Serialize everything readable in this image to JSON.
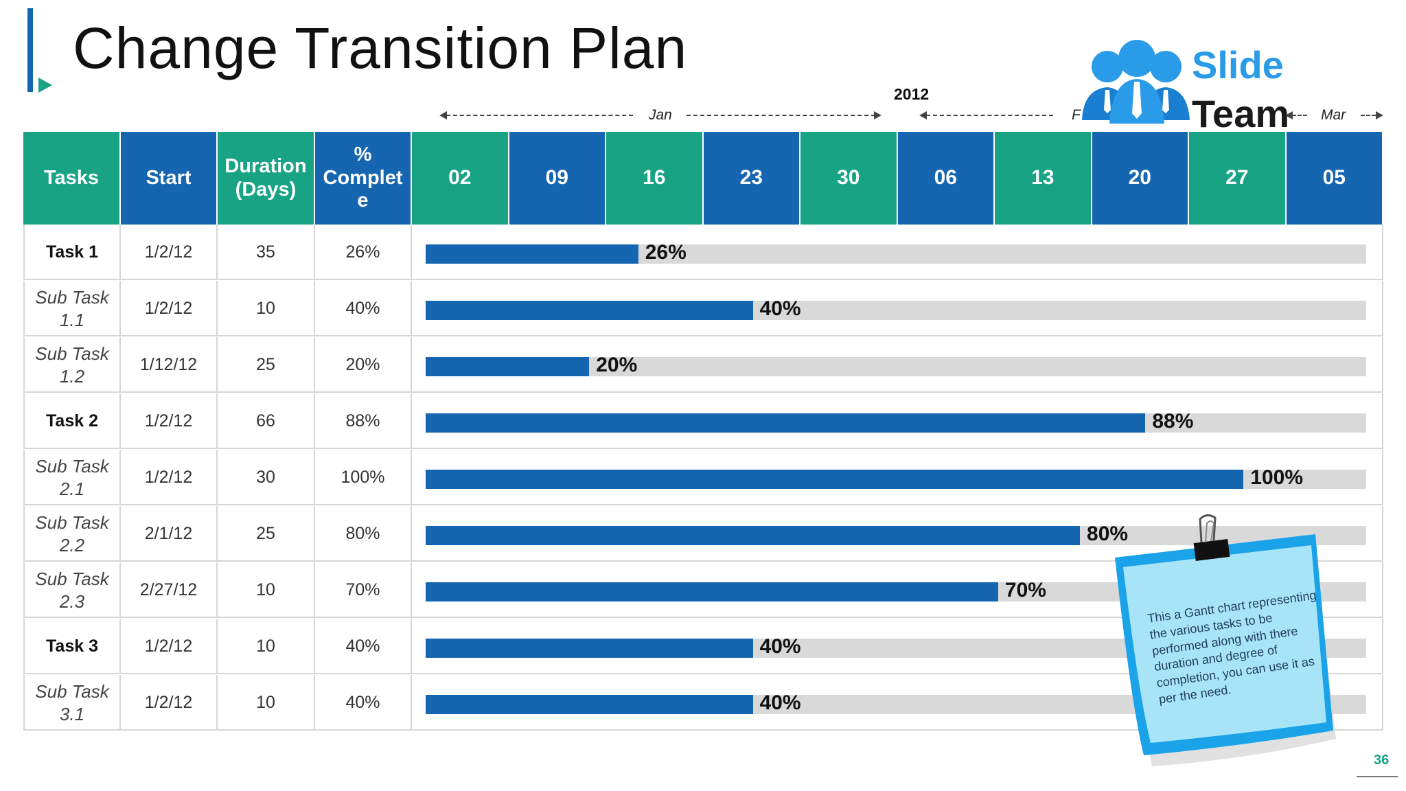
{
  "title": "Change Transition Plan",
  "logo": {
    "line1": "Slide",
    "line2": "Team"
  },
  "timeline": {
    "year": "2012",
    "months": [
      "Jan",
      "F",
      "Mar"
    ]
  },
  "table": {
    "headers": {
      "tasks": "Tasks",
      "start": "Start",
      "duration_line1": "Duration",
      "duration_line2": "(Days)",
      "complete_line1": "%",
      "complete_line2": "Complet",
      "complete_line3": "e"
    },
    "weeks": [
      "02",
      "09",
      "16",
      "23",
      "30",
      "06",
      "13",
      "20",
      "27",
      "05"
    ],
    "rows": [
      {
        "task_line1": "Task 1",
        "task_line2": "",
        "start": "1/2/12",
        "duration": "35",
        "complete": "26%",
        "main": true
      },
      {
        "task_line1": "Sub Task",
        "task_line2": "1.1",
        "start": "1/2/12",
        "duration": "10",
        "complete": "40%",
        "main": false
      },
      {
        "task_line1": "Sub Task",
        "task_line2": "1.2",
        "start": "1/12/12",
        "duration": "25",
        "complete": "20%",
        "main": false
      },
      {
        "task_line1": "Task 2",
        "task_line2": "",
        "start": "1/2/12",
        "duration": "66",
        "complete": "88%",
        "main": true
      },
      {
        "task_line1": "Sub Task",
        "task_line2": "2.1",
        "start": "1/2/12",
        "duration": "30",
        "complete": "100%",
        "main": false
      },
      {
        "task_line1": "Sub Task",
        "task_line2": "2.2",
        "start": "2/1/12",
        "duration": "25",
        "complete": "80%",
        "main": false
      },
      {
        "task_line1": "Sub Task",
        "task_line2": "2.3",
        "start": "2/27/12",
        "duration": "10",
        "complete": "70%",
        "main": false
      },
      {
        "task_line1": "Task 3",
        "task_line2": "",
        "start": "1/2/12",
        "duration": "10",
        "complete": "40%",
        "main": true
      },
      {
        "task_line1": "Sub Task",
        "task_line2": "3.1",
        "start": "1/2/12",
        "duration": "10",
        "complete": "40%",
        "main": false
      }
    ]
  },
  "chart_data": {
    "type": "bar",
    "orientation": "horizontal",
    "categories": [
      "Task 1",
      "Sub Task 1.1",
      "Sub Task 1.2",
      "Task 2",
      "Sub Task 2.1",
      "Sub Task 2.2",
      "Sub Task 2.3",
      "Task 3",
      "Sub Task 3.1"
    ],
    "values": [
      26,
      40,
      20,
      88,
      100,
      80,
      70,
      40,
      40
    ],
    "value_labels": [
      "26%",
      "40%",
      "20%",
      "88%",
      "100%",
      "80%",
      "70%",
      "40%",
      "40%"
    ],
    "xlim": [
      0,
      115
    ],
    "title": "",
    "xlabel": "",
    "ylabel": "",
    "colors": {
      "fill": "#1565b0",
      "track": "#d9d9d9"
    }
  },
  "note": {
    "text": "This a Gantt chart representing the various tasks to be performed along with there duration and degree of completion, you can use it as per the need."
  },
  "page_number": "36",
  "colors": {
    "teal": "#18a384",
    "blue": "#1565b0",
    "note": "#a8e4f7",
    "note_border": "#1aa3e8"
  }
}
